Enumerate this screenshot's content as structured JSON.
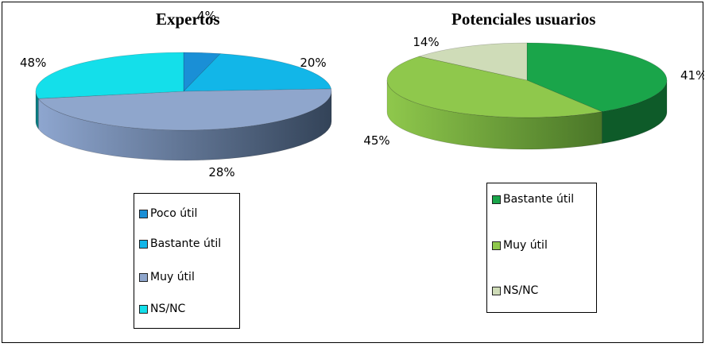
{
  "chart_data": [
    {
      "type": "pie",
      "title": "Expertos",
      "labels": [
        "Poco útil",
        "Bastante útil",
        "Muy útil",
        "NS/NC"
      ],
      "values": [
        4,
        20,
        48,
        28
      ],
      "value_labels": [
        "4%",
        "20%",
        "48%",
        "28%"
      ],
      "colors": [
        "#1a8fd6",
        "#12b6e8",
        "#8fa6cc",
        "#14dfea"
      ],
      "style": "3d",
      "legend_placement": "bottom"
    },
    {
      "type": "pie",
      "title": "Potenciales usuarios",
      "labels": [
        "Bastante útil",
        "Muy útil",
        "NS/NC"
      ],
      "values": [
        41,
        45,
        14
      ],
      "value_labels": [
        "41%",
        "45%",
        "14%"
      ],
      "colors": [
        "#1aa54a",
        "#8fc84c",
        "#cfdcb8"
      ],
      "style": "3d",
      "legend_placement": "bottom"
    }
  ]
}
